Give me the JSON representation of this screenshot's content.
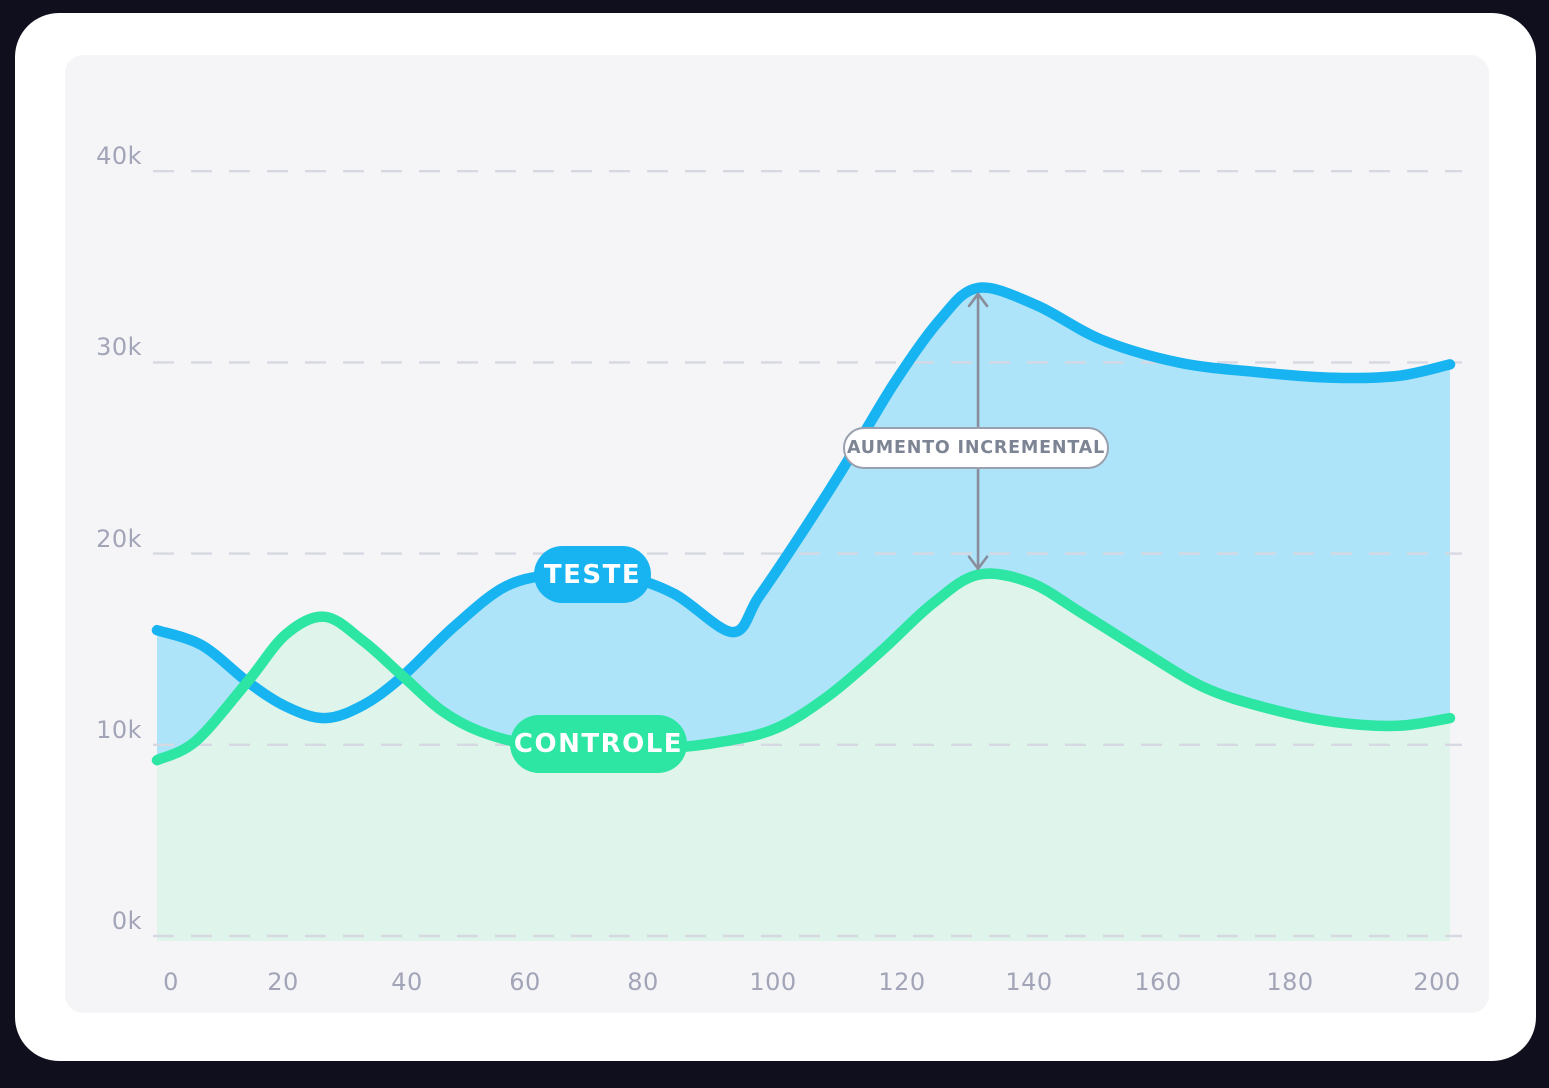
{
  "chart_data": {
    "type": "area",
    "title": "",
    "xlabel": "",
    "ylabel": "",
    "unit": "thousands (k)",
    "x_axis": {
      "range": [
        0,
        200
      ],
      "ticks": [
        "0",
        "20",
        "40",
        "60",
        "80",
        "100",
        "120",
        "140",
        "160",
        "180",
        "200"
      ]
    },
    "y_axis": {
      "range": [
        0,
        42
      ],
      "ticks": [
        {
          "value": 0,
          "label": "0k"
        },
        {
          "value": 10,
          "label": "10k"
        },
        {
          "value": 20,
          "label": "20k"
        },
        {
          "value": 30,
          "label": "30k"
        },
        {
          "value": 40,
          "label": "40k"
        }
      ]
    },
    "grid": "horizontal-dashed",
    "series": [
      {
        "name": "TESTE",
        "color": "#18b4f2",
        "fill_color": "#ade4f9",
        "points": [
          [
            0,
            16.1
          ],
          [
            7,
            15.3
          ],
          [
            14,
            13.4
          ],
          [
            20,
            12.1
          ],
          [
            26,
            11.5
          ],
          [
            32,
            12.2
          ],
          [
            38,
            13.7
          ],
          [
            46,
            16.3
          ],
          [
            54,
            18.4
          ],
          [
            62,
            19.0
          ],
          [
            72,
            18.9
          ],
          [
            80,
            18.0
          ],
          [
            89,
            16.0
          ],
          [
            93,
            17.8
          ],
          [
            99,
            20.8
          ],
          [
            106,
            24.5
          ],
          [
            114,
            29.0
          ],
          [
            121,
            32.3
          ],
          [
            127,
            34.0
          ],
          [
            136,
            33.1
          ],
          [
            146,
            31.3
          ],
          [
            158,
            30.1
          ],
          [
            170,
            29.6
          ],
          [
            182,
            29.3
          ],
          [
            192,
            29.4
          ],
          [
            200,
            30.0
          ]
        ]
      },
      {
        "name": "CONTROLE",
        "color": "#2de6a4",
        "fill_color": "#dff4ea",
        "points": [
          [
            0,
            9.3
          ],
          [
            6,
            10.3
          ],
          [
            14,
            13.4
          ],
          [
            20,
            15.9
          ],
          [
            26,
            16.8
          ],
          [
            32,
            15.5
          ],
          [
            38,
            13.7
          ],
          [
            44,
            11.9
          ],
          [
            50,
            10.8
          ],
          [
            58,
            10.1
          ],
          [
            68,
            9.9
          ],
          [
            78,
            9.9
          ],
          [
            88,
            10.3
          ],
          [
            96,
            11.0
          ],
          [
            104,
            12.7
          ],
          [
            112,
            15.0
          ],
          [
            120,
            17.5
          ],
          [
            127,
            19.0
          ],
          [
            135,
            18.6
          ],
          [
            143,
            17.0
          ],
          [
            152,
            15.1
          ],
          [
            162,
            13.1
          ],
          [
            172,
            12.0
          ],
          [
            182,
            11.3
          ],
          [
            192,
            11.1
          ],
          [
            200,
            11.5
          ]
        ]
      }
    ],
    "annotation": {
      "label": "AUMENTO INCREMENTAL",
      "x": 127,
      "from_k": 19,
      "to_k": 34
    }
  },
  "colors": {
    "page_bg": "#100f1d",
    "card_bg": "#ffffff",
    "panel_bg": "#f5f5f7",
    "gridline": "#d6d8e2",
    "axis_text": "#a2a4b8",
    "arrow": "#8a8d9b",
    "annotation_border": "#9aa0ae",
    "annotation_text": "#7d8494",
    "pill_text": "#ffffff"
  }
}
